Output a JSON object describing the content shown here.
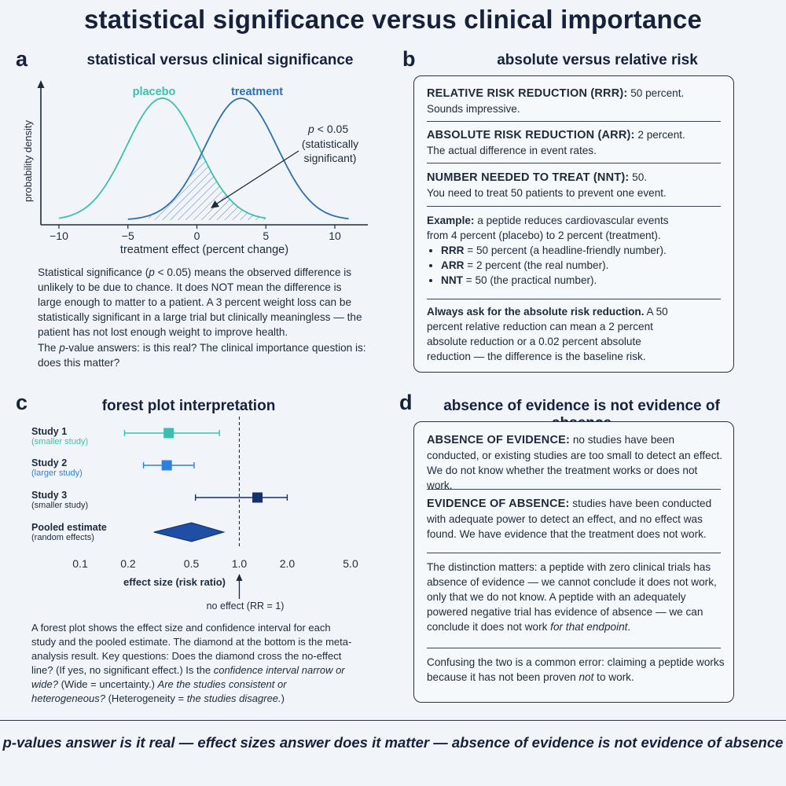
{
  "title": "statistical significance versus clinical importance",
  "panel_a": {
    "letter": "a",
    "title": "statistical versus clinical significance",
    "chart_data": {
      "type": "area",
      "series": [
        {
          "name": "placebo",
          "mean": -2.5,
          "sd": 2.6,
          "color": "#3cc0ad"
        },
        {
          "name": "treatment",
          "mean": 3.2,
          "sd": 2.6,
          "color": "#2c6fb0"
        }
      ],
      "xlabel": "treatment effect (percent change)",
      "ylabel": "probability density",
      "xlim": [
        -11,
        11
      ],
      "xticks": [
        "−10",
        "−5",
        "0",
        "5",
        "10"
      ],
      "annotation": {
        "p_label": "< 0.05",
        "line2": "(statistically",
        "line3": "significant)"
      }
    },
    "text1": {
      "pre": "Statistical significance (",
      "p": "p",
      "post": " < 0.05) means the observed difference is unlikely to be due to chance. It does NOT mean the difference is large enough to matter to a patient. A 3 percent weight loss can be statistically significant in a large trial but clinically meaningless — the patient has not lost enough weight to improve health."
    },
    "text2": {
      "pre": "The ",
      "p": "p",
      "post": "-value answers: is this real? The clinical importance question is: does this matter?"
    }
  },
  "panel_b": {
    "letter": "b",
    "title": "absolute versus relative risk",
    "rrr": {
      "label": "RELATIVE RISK REDUCTION (RRR):",
      "value": " 50 percent.",
      "desc": "Sounds impressive."
    },
    "arr": {
      "label": "ABSOLUTE RISK REDUCTION (ARR):",
      "value": " 2 percent.",
      "desc": "The actual difference in event rates."
    },
    "nnt": {
      "label": "NUMBER NEEDED TO TREAT (NNT):",
      "value": " 50.",
      "desc": "You need to treat 50 patients to prevent one event."
    },
    "example": {
      "label": "Example:",
      "text": " a peptide reduces cardiovascular events from 4 percent (placebo) to 2 percent (treatment).",
      "bullets": [
        {
          "key": "RRR",
          "text": " = 50 percent (a headline-friendly number)."
        },
        {
          "key": "ARR",
          "text": " = 2 percent (the real number)."
        },
        {
          "key": "NNT",
          "text": " = 50 (the practical number)."
        }
      ]
    },
    "advice": {
      "bold": "Always ask for the absolute risk reduction.",
      "text": " A 50 percent relative reduction can mean a 2 percent absolute reduction or a 0.02 percent absolute reduction — the difference is the baseline risk."
    }
  },
  "panel_c": {
    "letter": "c",
    "title": "forest plot interpretation",
    "chart_data": {
      "type": "scatter",
      "scale": "log",
      "studies": [
        {
          "name": "Study 1",
          "sub": "(smaller study)",
          "estimate": 0.36,
          "ci": [
            0.19,
            0.75
          ],
          "color": "#3cc0ad"
        },
        {
          "name": "Study 2",
          "sub": "(larger study)",
          "estimate": 0.35,
          "ci": [
            0.25,
            0.52
          ],
          "color": "#2e7fe0"
        },
        {
          "name": "Study 3",
          "sub": "(smaller study)",
          "estimate": 1.3,
          "ci": [
            0.53,
            2.0
          ],
          "color": "#15306d"
        }
      ],
      "pooled": {
        "name": "Pooled estimate",
        "sub": "(random effects)",
        "estimate": 0.5,
        "ci": [
          0.29,
          0.8
        ],
        "color": "#1f4fa5"
      },
      "xticks": [
        {
          "label": "0.1",
          "value": 0.1
        },
        {
          "label": "0.2",
          "value": 0.2
        },
        {
          "label": "0.5",
          "value": 0.5
        },
        {
          "label": "1.0",
          "value": 1.0
        },
        {
          "label": "2.0",
          "value": 2.0
        },
        {
          "label": "5.0",
          "value": 5.0
        }
      ],
      "xlabel": "effect size (risk ratio)",
      "no_effect_label": "no effect (RR = 1)"
    },
    "text": {
      "t1": "A forest plot shows the effect size and confidence interval for each study and the pooled estimate. The diamond at the bottom is the meta-analysis result. Key questions: Does the diamond cross the no-effect line? (If yes, no significant effect.) Is the ",
      "i1": "confidence interval narrow or wide?",
      "t2": " (Wide = uncertainty.) ",
      "i2": "Are the studies consistent or heterogeneous?",
      "t3": " (Heterogeneity = ",
      "i3": "the studies disagree.",
      "t4": ")"
    }
  },
  "panel_d": {
    "letter": "d",
    "title": "absence of evidence is not evidence of absence",
    "absence_of_evidence": {
      "label": "ABSENCE OF EVIDENCE:",
      "text": " no studies have been conducted, or existing studies are too small to detect an effect. We do not know whether the treatment works or does not work."
    },
    "evidence_of_absence": {
      "label": "EVIDENCE OF ABSENCE:",
      "text": " studies have been conducted with adequate power to detect an effect, and no effect was found. We have evidence that the treatment does not work."
    },
    "distinction": {
      "text": "The distinction matters: a peptide with zero clinical trials has absence of evidence — we cannot conclude it does not work, only that we do not know. A peptide with an adequately powered negative trial has evidence of absence — we can conclude it does not work ",
      "italic": "for that endpoint",
      "end": "."
    },
    "confusing": {
      "pre": "Confusing the two is a common error: claiming a peptide works because it has not been proven ",
      "italic": "not",
      "post": " to work."
    }
  },
  "footer": "p-values answer is it real — effect sizes answer does it matter — absence of evidence is not evidence of absence"
}
